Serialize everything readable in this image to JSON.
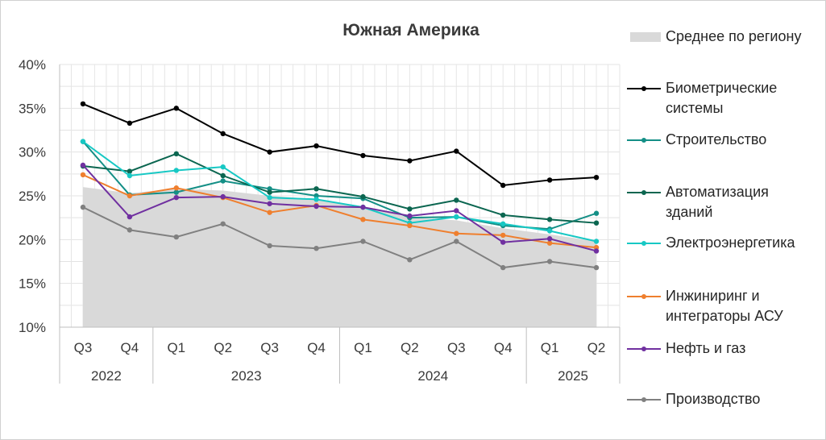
{
  "chart_data": {
    "type": "line",
    "title": "Южная Америка",
    "xlabel": "",
    "ylabel": "",
    "ylim": [
      0.1,
      0.4
    ],
    "yticks": [
      "10%",
      "15%",
      "20%",
      "25%",
      "30%",
      "35%",
      "40%"
    ],
    "yticks_values": [
      0.1,
      0.15,
      0.2,
      0.25,
      0.3,
      0.35,
      0.4
    ],
    "categories": [
      "Q3",
      "Q4",
      "Q1",
      "Q2",
      "Q3",
      "Q4",
      "Q1",
      "Q2",
      "Q3",
      "Q4",
      "Q1",
      "Q2"
    ],
    "year_groups": [
      {
        "label": "2022",
        "count": 2
      },
      {
        "label": "2023",
        "count": 4
      },
      {
        "label": "2024",
        "count": 4
      },
      {
        "label": "2025",
        "count": 2
      }
    ],
    "grid": true,
    "legend_position": "right",
    "area": {
      "name": "Среднее по региону",
      "color": "#d9d9d9",
      "values": [
        0.26,
        0.253,
        0.258,
        0.256,
        0.25,
        0.246,
        0.238,
        0.225,
        0.222,
        0.213,
        0.206,
        0.198
      ]
    },
    "series": [
      {
        "name": "Биометрические\nсистемы",
        "color": "#000000",
        "values": [
          0.355,
          0.333,
          0.35,
          0.321,
          0.3,
          0.307,
          0.296,
          0.29,
          0.301,
          0.262,
          0.268,
          0.271
        ]
      },
      {
        "name": "Строительство",
        "color": "#148f86",
        "values": [
          0.312,
          0.251,
          0.254,
          0.267,
          0.258,
          0.25,
          0.247,
          0.225,
          0.226,
          0.216,
          0.212,
          0.23
        ]
      },
      {
        "name": "Автоматизация\nзданий",
        "color": "#0b6650",
        "values": [
          0.284,
          0.278,
          0.298,
          0.273,
          0.254,
          0.258,
          0.249,
          0.235,
          0.245,
          0.228,
          0.223,
          0.219
        ]
      },
      {
        "name": "Электроэнергетика",
        "color": "#17c8c4",
        "values": [
          0.312,
          0.273,
          0.279,
          0.283,
          0.248,
          0.246,
          0.237,
          0.219,
          0.226,
          0.218,
          0.21,
          0.198
        ]
      },
      {
        "name": "Инжиниринг и\nинтеграторы АСУ",
        "color": "#ef7f2e",
        "values": [
          0.274,
          0.25,
          0.259,
          0.248,
          0.231,
          0.239,
          0.223,
          0.216,
          0.207,
          0.205,
          0.196,
          0.191
        ]
      },
      {
        "name": "Нефть и газ",
        "color": "#7030a0",
        "values": [
          0.285,
          0.226,
          0.248,
          0.249,
          0.241,
          0.238,
          0.237,
          0.227,
          0.233,
          0.197,
          0.201,
          0.187
        ]
      },
      {
        "name": "Производство",
        "color": "#808080",
        "values": [
          0.237,
          0.211,
          0.203,
          0.218,
          0.193,
          0.19,
          0.198,
          0.177,
          0.198,
          0.168,
          0.175,
          0.168
        ]
      }
    ]
  }
}
